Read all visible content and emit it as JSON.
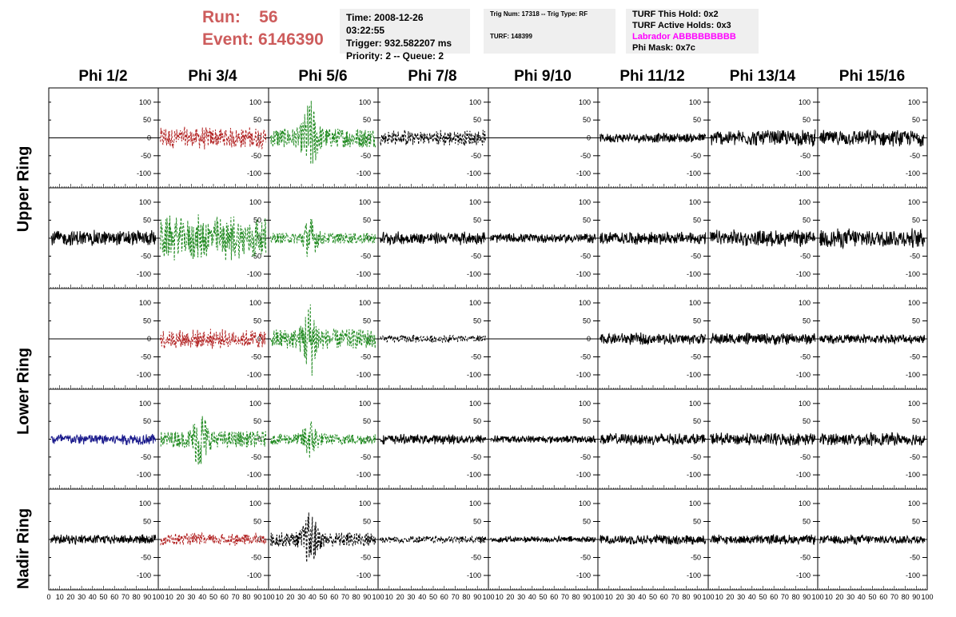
{
  "header": {
    "run_label": "Run:",
    "run_value": "56",
    "event_label": "Event:",
    "event_value": "6146390",
    "time": "Time: 2008-12-26 03:22:55",
    "trigger": "Trigger: 932.582207 ms",
    "priority": "Priority: 2 -- Queue: 2",
    "trig_num": "Trig Num: 17318 -- Trig Type: RF",
    "turf": "TURF: 148399",
    "turf_hold": "TURF This Hold: 0x2",
    "turf_active": "TURF Active Holds: 0x3",
    "labrador": "Labrador ABBBBBBBBB",
    "phi_mask": "Phi Mask: 0x7c"
  },
  "colors": {
    "red": "#b22222",
    "green": "#228b22",
    "blue": "#1a1a8c",
    "black": "#000000",
    "header_red": "#cd5c5c",
    "magenta": "#ff00ff"
  },
  "columns": [
    "Phi 1/2",
    "Phi 3/4",
    "Phi 5/6",
    "Phi 7/8",
    "Phi 9/10",
    "Phi 11/12",
    "Phi 13/14",
    "Phi 15/16"
  ],
  "rows": [
    "Upper Ring",
    "Upper Ring",
    "Lower Ring",
    "Lower Ring",
    "Nadir Ring"
  ],
  "chart_data": {
    "type": "line",
    "x_ticks": [
      0,
      10,
      20,
      30,
      40,
      50,
      60,
      70,
      80,
      90,
      100
    ],
    "y_ticks": [
      -100,
      -50,
      0,
      50,
      100
    ],
    "xlim": [
      0,
      100
    ],
    "ylim": [
      -140,
      140
    ],
    "grid": false,
    "panels": [
      [
        "flat",
        "red",
        "green",
        "black-dash",
        "flat",
        "black",
        "black",
        "black"
      ],
      [
        "black",
        "green",
        "green",
        "black",
        "black",
        "black",
        "black",
        "black"
      ],
      [
        "flat",
        "red",
        "green",
        "black-dash",
        "flat",
        "black",
        "black",
        "black"
      ],
      [
        "blue",
        "green",
        "green",
        "black",
        "black",
        "black",
        "black",
        "black"
      ],
      [
        "black",
        "red",
        "black-dash",
        "black-dash",
        "black",
        "black",
        "black",
        "black"
      ]
    ],
    "amplitudes": [
      [
        0,
        35,
        110,
        25,
        0,
        15,
        25,
        25
      ],
      [
        25,
        70,
        60,
        20,
        15,
        20,
        25,
        30
      ],
      [
        0,
        30,
        110,
        12,
        0,
        18,
        18,
        15
      ],
      [
        18,
        90,
        60,
        15,
        12,
        18,
        20,
        20
      ],
      [
        15,
        20,
        80,
        12,
        10,
        15,
        15,
        15
      ]
    ]
  }
}
